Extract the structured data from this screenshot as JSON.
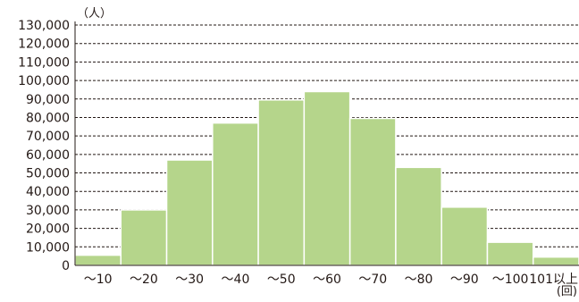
{
  "chart_data": {
    "type": "bar",
    "categories": [
      "～10",
      "～20",
      "～30",
      "～40",
      "～50",
      "～60",
      "～70",
      "～80",
      "～90",
      "～100",
      "101以上"
    ],
    "values": [
      5500,
      30000,
      57000,
      77000,
      89500,
      94000,
      79500,
      53000,
      31500,
      12500,
      4500
    ],
    "y_unit": "（人）",
    "x_unit": "(回)",
    "ylim": [
      0,
      130000
    ],
    "y_ticks": [
      "0",
      "10,000",
      "20,000",
      "30,000",
      "40,000",
      "50,000",
      "60,000",
      "70,000",
      "80,000",
      "90,000",
      "100,000",
      "110,000",
      "120,000",
      "130,000"
    ],
    "grid": true,
    "bar_color": "#b5d58b",
    "bar_edge_color": "#ffffff",
    "grid_color": "#231815",
    "axis_color": "#231815"
  }
}
